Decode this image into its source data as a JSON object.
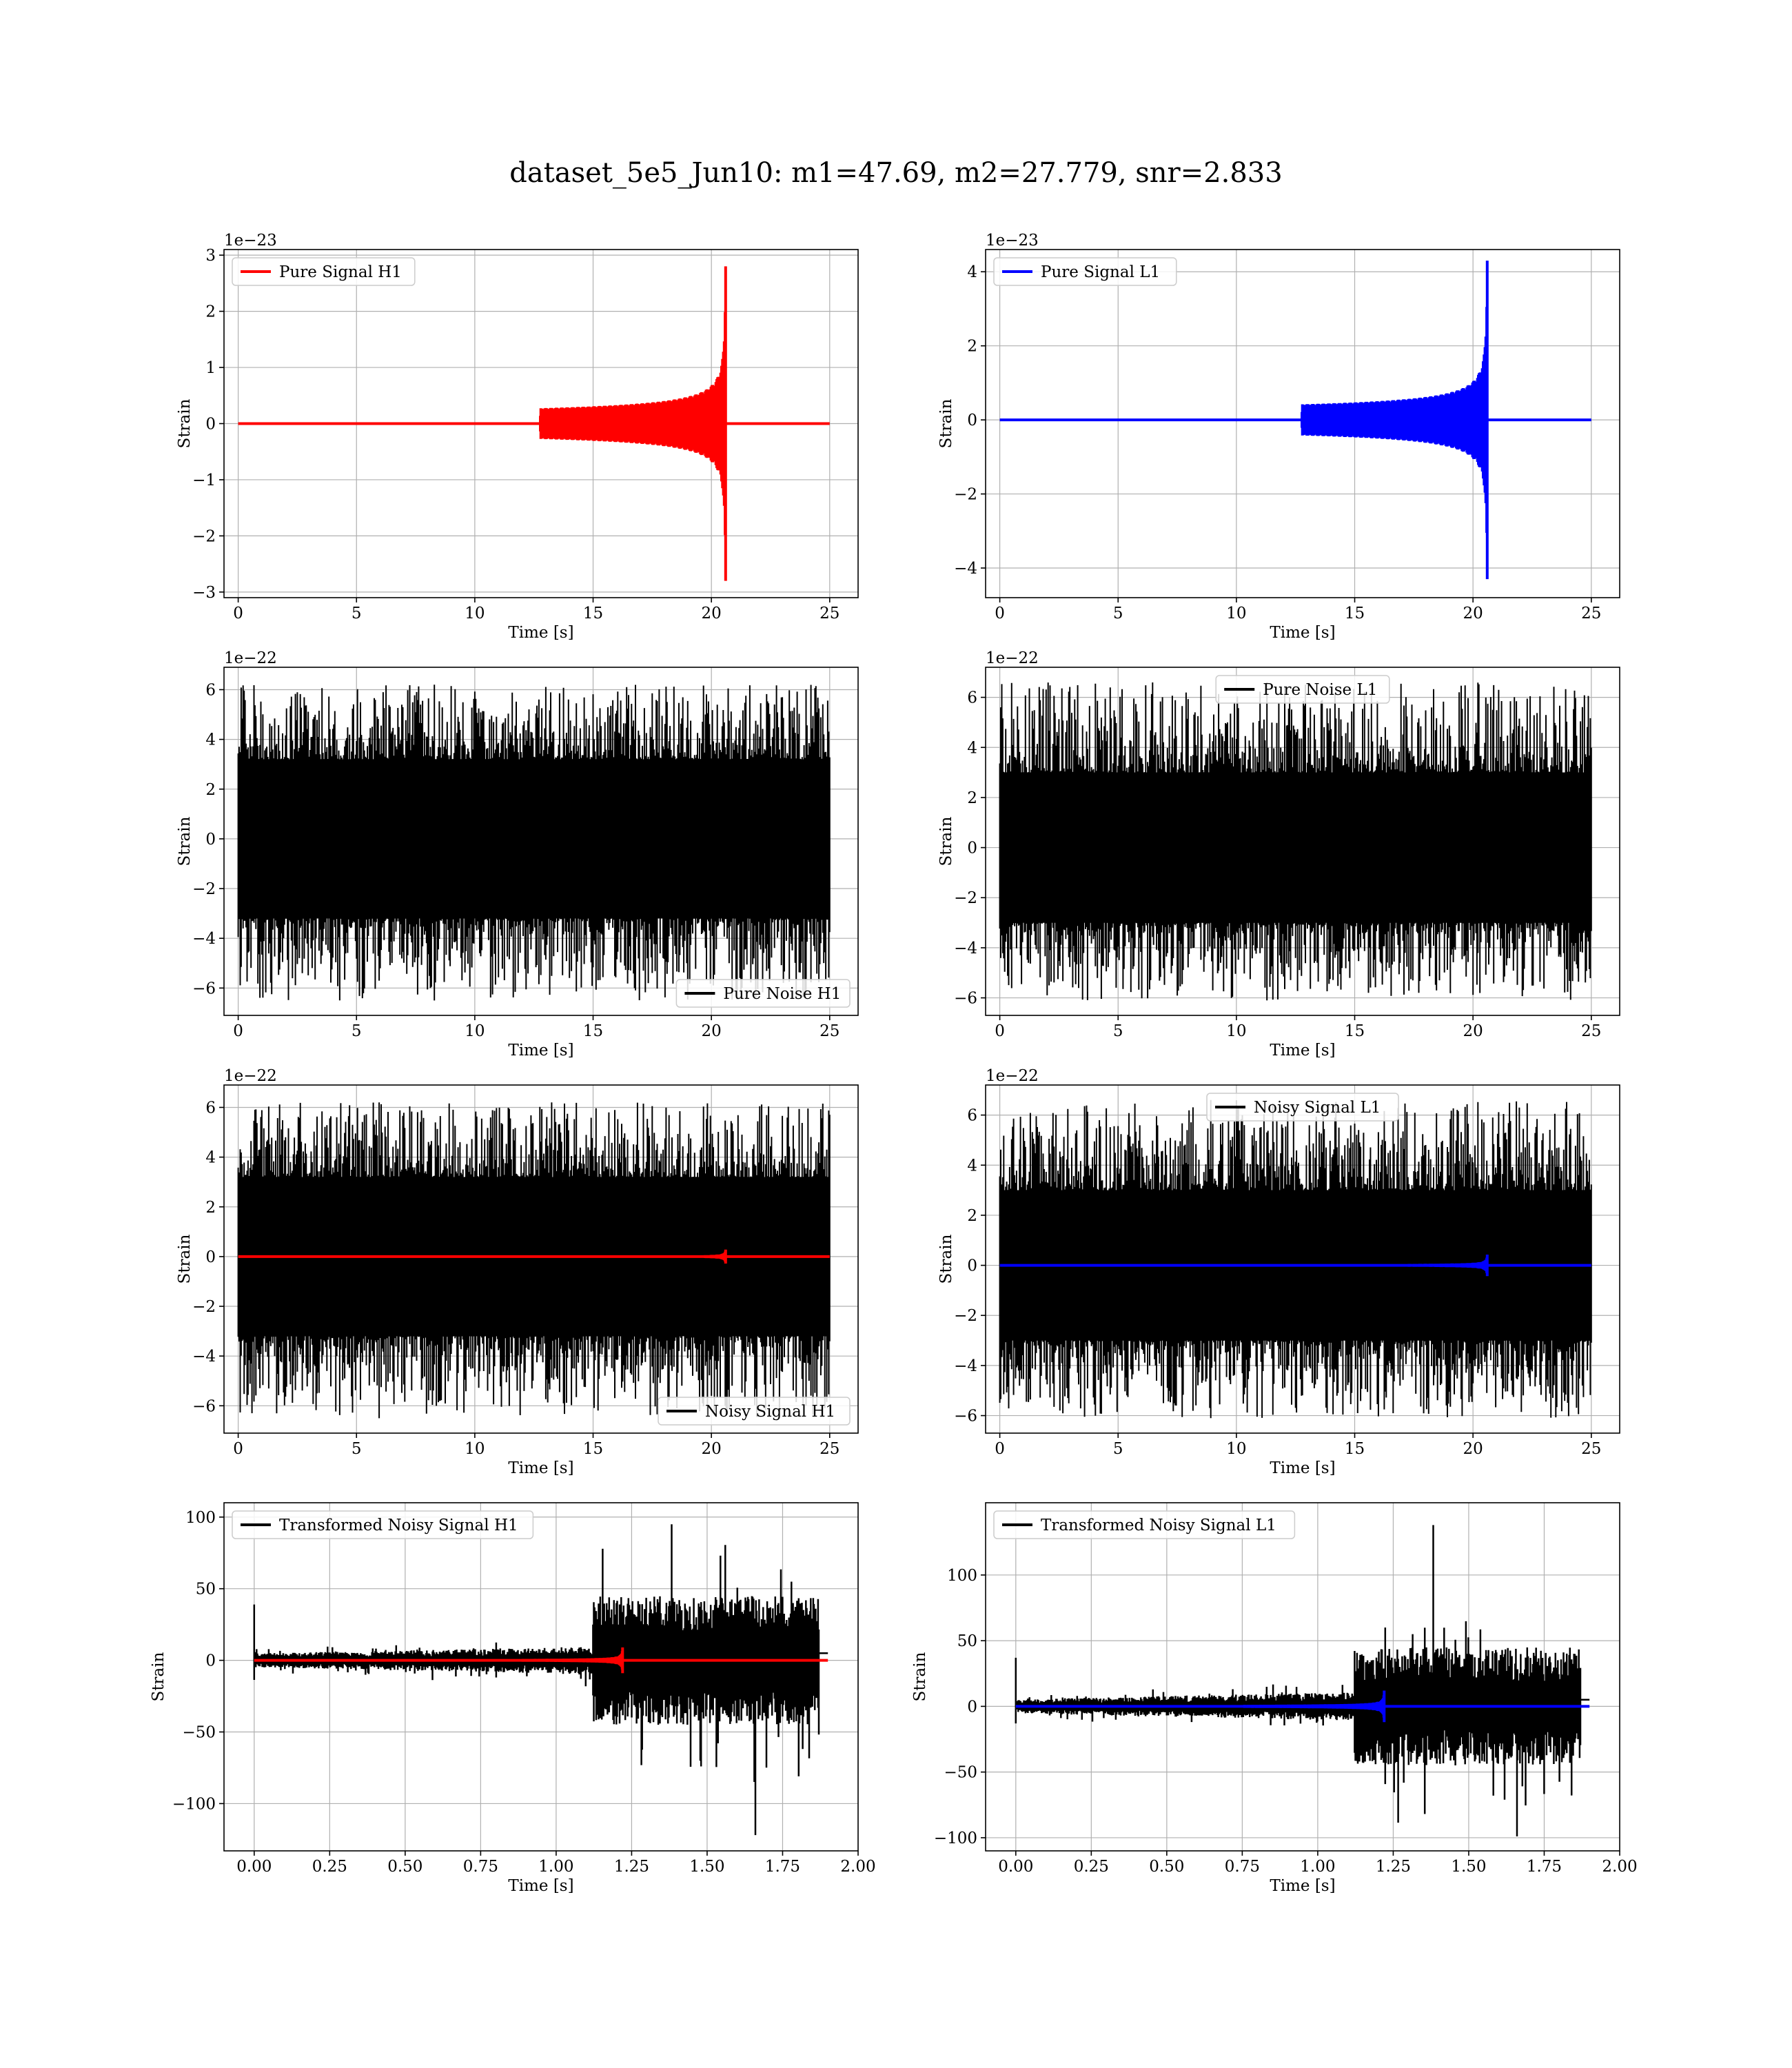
{
  "title": "dataset_5e5_Jun10: m1=47.69, m2=27.779, snr=2.833",
  "chart_data": [
    {
      "id": "h1-signal",
      "type": "line",
      "legend": {
        "label": "Pure Signal H1",
        "position": "upper-left"
      },
      "xlabel": "Time [s]",
      "ylabel": "Strain",
      "offset_text": "1e−23",
      "xlim": [
        -0.6,
        26.2
      ],
      "ylim": [
        -3.1,
        3.1
      ],
      "xticks": [
        0,
        5,
        10,
        15,
        20,
        25
      ],
      "xtick_labels": [
        "0",
        "5",
        "10",
        "15",
        "20",
        "25"
      ],
      "yticks": [
        -3,
        -2,
        -1,
        0,
        1,
        2,
        3
      ],
      "ytick_labels": [
        "−3",
        "−2",
        "−1",
        "0",
        "1",
        "2",
        "3"
      ],
      "grid": true,
      "series": [
        {
          "name": "Pure Signal H1",
          "color": "#ff0000",
          "kind": "chirp",
          "x_start": 0,
          "x_end": 25,
          "merger": 20.6,
          "peak": 2.8
        }
      ]
    },
    {
      "id": "l1-signal",
      "type": "line",
      "legend": {
        "label": "Pure Signal L1",
        "position": "upper-left"
      },
      "xlabel": "Time [s]",
      "ylabel": "Strain",
      "offset_text": "1e−23",
      "xlim": [
        -0.6,
        26.2
      ],
      "ylim": [
        -4.8,
        4.6
      ],
      "xticks": [
        0,
        5,
        10,
        15,
        20,
        25
      ],
      "xtick_labels": [
        "0",
        "5",
        "10",
        "15",
        "20",
        "25"
      ],
      "yticks": [
        -4,
        -2,
        0,
        2,
        4
      ],
      "ytick_labels": [
        "−4",
        "−2",
        "0",
        "2",
        "4"
      ],
      "grid": true,
      "series": [
        {
          "name": "Pure Signal L1",
          "color": "#0000ff",
          "kind": "chirp",
          "x_start": 0,
          "x_end": 25,
          "merger": 20.6,
          "peak": 4.3
        }
      ]
    },
    {
      "id": "h1-noise",
      "type": "line",
      "legend": {
        "label": "Pure Noise H1",
        "position": "lower-right"
      },
      "xlabel": "Time [s]",
      "ylabel": "Strain",
      "offset_text": "1e−22",
      "xlim": [
        -0.6,
        26.2
      ],
      "ylim": [
        -7.1,
        6.9
      ],
      "xticks": [
        0,
        5,
        10,
        15,
        20,
        25
      ],
      "xtick_labels": [
        "0",
        "5",
        "10",
        "15",
        "20",
        "25"
      ],
      "yticks": [
        -6,
        -4,
        -2,
        0,
        2,
        4,
        6
      ],
      "ytick_labels": [
        "−6",
        "−4",
        "−2",
        "0",
        "2",
        "4",
        "6"
      ],
      "grid": true,
      "series": [
        {
          "name": "Pure Noise H1",
          "color": "#000000",
          "kind": "noise",
          "x_start": 0,
          "x_end": 25,
          "core": 3.2,
          "max": 6.2,
          "min": -6.5
        }
      ]
    },
    {
      "id": "l1-noise",
      "type": "line",
      "legend": {
        "label": "Pure Noise L1",
        "position": "upper-center"
      },
      "xlabel": "Time [s]",
      "ylabel": "Strain",
      "offset_text": "1e−22",
      "xlim": [
        -0.6,
        26.2
      ],
      "ylim": [
        -6.7,
        7.2
      ],
      "xticks": [
        0,
        5,
        10,
        15,
        20,
        25
      ],
      "xtick_labels": [
        "0",
        "5",
        "10",
        "15",
        "20",
        "25"
      ],
      "yticks": [
        -6,
        -4,
        -2,
        0,
        2,
        4,
        6
      ],
      "ytick_labels": [
        "−6",
        "−4",
        "−2",
        "0",
        "2",
        "4",
        "6"
      ],
      "grid": true,
      "series": [
        {
          "name": "Pure Noise L1",
          "color": "#000000",
          "kind": "noise",
          "x_start": 0,
          "x_end": 25,
          "core": 3.0,
          "max": 6.6,
          "min": -6.1
        }
      ]
    },
    {
      "id": "h1-noisy",
      "type": "line",
      "legend": {
        "label": "Noisy Signal H1",
        "position": "lower-right"
      },
      "xlabel": "Time [s]",
      "ylabel": "Strain",
      "offset_text": "1e−22",
      "xlim": [
        -0.6,
        26.2
      ],
      "ylim": [
        -7.1,
        6.9
      ],
      "xticks": [
        0,
        5,
        10,
        15,
        20,
        25
      ],
      "xtick_labels": [
        "0",
        "5",
        "10",
        "15",
        "20",
        "25"
      ],
      "yticks": [
        -6,
        -4,
        -2,
        0,
        2,
        4,
        6
      ],
      "ytick_labels": [
        "−6",
        "−4",
        "−2",
        "0",
        "2",
        "4",
        "6"
      ],
      "grid": true,
      "series": [
        {
          "name": "Noisy Signal H1",
          "color": "#000000",
          "kind": "noise",
          "x_start": 0,
          "x_end": 25,
          "core": 3.2,
          "max": 6.2,
          "min": -6.5
        },
        {
          "color": "#ff0000",
          "kind": "chirp",
          "x_start": 0,
          "x_end": 25,
          "merger": 20.6,
          "peak": 0.28
        }
      ]
    },
    {
      "id": "l1-noisy",
      "type": "line",
      "legend": {
        "label": "Noisy Signal L1",
        "position": "upper-center"
      },
      "xlabel": "Time [s]",
      "ylabel": "Strain",
      "offset_text": "1e−22",
      "xlim": [
        -0.6,
        26.2
      ],
      "ylim": [
        -6.7,
        7.2
      ],
      "xticks": [
        0,
        5,
        10,
        15,
        20,
        25
      ],
      "xtick_labels": [
        "0",
        "5",
        "10",
        "15",
        "20",
        "25"
      ],
      "yticks": [
        -6,
        -4,
        -2,
        0,
        2,
        4,
        6
      ],
      "ytick_labels": [
        "−6",
        "−4",
        "−2",
        "0",
        "2",
        "4",
        "6"
      ],
      "grid": true,
      "series": [
        {
          "name": "Noisy Signal L1",
          "color": "#000000",
          "kind": "noise",
          "x_start": 0,
          "x_end": 25,
          "core": 3.0,
          "max": 6.6,
          "min": -6.1
        },
        {
          "color": "#0000ff",
          "kind": "chirp",
          "x_start": 0,
          "x_end": 25,
          "merger": 20.6,
          "peak": 0.43
        }
      ]
    },
    {
      "id": "h1-transformed",
      "type": "line",
      "legend": {
        "label": "Transformed Noisy Signal H1",
        "position": "upper-left"
      },
      "xlabel": "Time [s]",
      "ylabel": "Strain",
      "offset_text": "",
      "xlim": [
        -0.1,
        2.0
      ],
      "ylim": [
        -133,
        110
      ],
      "xticks": [
        0,
        0.25,
        0.5,
        0.75,
        1.0,
        1.25,
        1.5,
        1.75,
        2.0
      ],
      "xtick_labels": [
        "0.00",
        "0.25",
        "0.50",
        "0.75",
        "1.00",
        "1.25",
        "1.50",
        "1.75",
        "2.00"
      ],
      "yticks": [
        -100,
        -50,
        0,
        50,
        100
      ],
      "ytick_labels": [
        "−100",
        "−50",
        "0",
        "50",
        "100"
      ],
      "grid": true,
      "series": [
        {
          "name": "Transformed Noisy Signal H1",
          "color": "#000000",
          "kind": "burst",
          "x_start": 0,
          "x_end": 1.9,
          "jump": 1.12,
          "cut": 1.87,
          "low_amp": 8,
          "high_amp": 45,
          "max": 95,
          "min": -122,
          "spike0": 39
        },
        {
          "color": "#ff0000",
          "kind": "chirp",
          "x_start": 0,
          "x_end": 1.9,
          "merger": 1.22,
          "peak": 9
        }
      ]
    },
    {
      "id": "l1-transformed",
      "type": "line",
      "legend": {
        "label": "Transformed Noisy Signal L1",
        "position": "upper-left"
      },
      "xlabel": "Time [s]",
      "ylabel": "Strain",
      "offset_text": "",
      "xlim": [
        -0.1,
        2.0
      ],
      "ylim": [
        -110,
        155
      ],
      "xticks": [
        0,
        0.25,
        0.5,
        0.75,
        1.0,
        1.25,
        1.5,
        1.75,
        2.0
      ],
      "xtick_labels": [
        "0.00",
        "0.25",
        "0.50",
        "0.75",
        "1.00",
        "1.25",
        "1.50",
        "1.75",
        "2.00"
      ],
      "yticks": [
        -100,
        -50,
        0,
        50,
        100
      ],
      "ytick_labels": [
        "−100",
        "−50",
        "0",
        "50",
        "100"
      ],
      "grid": true,
      "series": [
        {
          "name": "Transformed Noisy Signal L1",
          "color": "#000000",
          "kind": "burst",
          "x_start": 0,
          "x_end": 1.9,
          "jump": 1.12,
          "cut": 1.87,
          "low_amp": 9,
          "high_amp": 45,
          "max": 138,
          "min": -99,
          "spike0": 37
        },
        {
          "color": "#0000ff",
          "kind": "chirp",
          "x_start": 0,
          "x_end": 1.9,
          "merger": 1.22,
          "peak": 12
        }
      ]
    }
  ]
}
